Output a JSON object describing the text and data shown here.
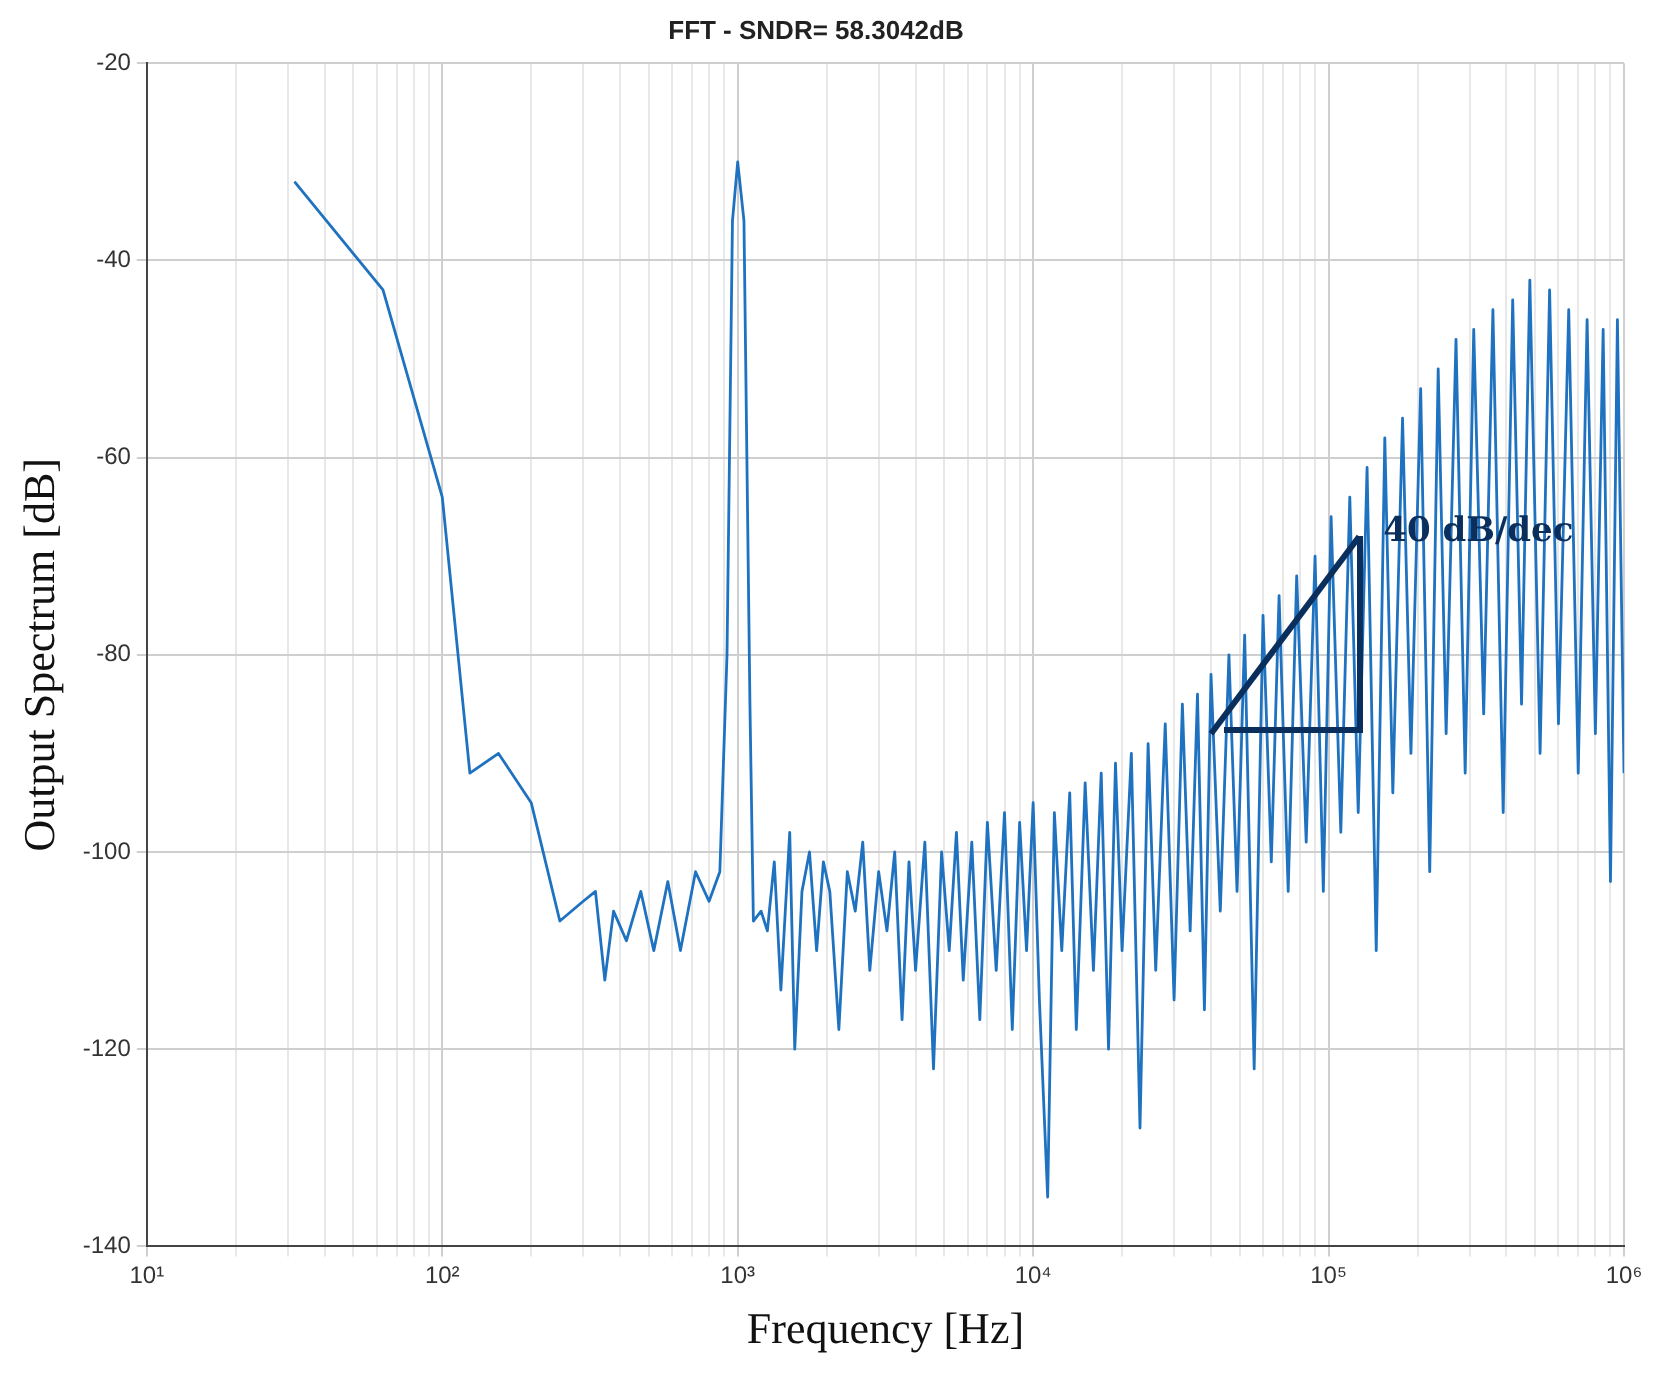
{
  "chart_data": {
    "type": "line",
    "title": "FFT - SNDR= 58.3042dB",
    "xlabel": "Frequency [Hz]",
    "ylabel": "Output Spectrum [dB]",
    "log": "x",
    "grid": true,
    "marker": "none",
    "line_style": "solid",
    "legend": false,
    "annotations": [
      {
        "text": "40 dB/dec",
        "x": 127000,
        "y": -68
      }
    ],
    "xlim": [
      10,
      1000000
    ],
    "ylim": [
      -140,
      -20
    ],
    "xticks": [
      {
        "value": 10,
        "label": "10¹"
      },
      {
        "value": 20,
        "label": null
      },
      {
        "value": 30,
        "label": null
      },
      {
        "value": 40,
        "label": null
      },
      {
        "value": 50,
        "label": null
      },
      {
        "value": 60,
        "label": null
      },
      {
        "value": 70,
        "label": null
      },
      {
        "value": 80,
        "label": null
      },
      {
        "value": 90,
        "label": null
      },
      {
        "value": 100,
        "label": "10²"
      },
      {
        "value": 200,
        "label": null
      },
      {
        "value": 300,
        "label": null
      },
      {
        "value": 400,
        "label": null
      },
      {
        "value": 500,
        "label": null
      },
      {
        "value": 600,
        "label": null
      },
      {
        "value": 700,
        "label": null
      },
      {
        "value": 800,
        "label": null
      },
      {
        "value": 900,
        "label": null
      },
      {
        "value": 1000,
        "label": "10³"
      },
      {
        "value": 2000,
        "label": null
      },
      {
        "value": 3000,
        "label": null
      },
      {
        "value": 4000,
        "label": null
      },
      {
        "value": 5000,
        "label": null
      },
      {
        "value": 6000,
        "label": null
      },
      {
        "value": 7000,
        "label": null
      },
      {
        "value": 8000,
        "label": null
      },
      {
        "value": 9000,
        "label": null
      },
      {
        "value": 10000,
        "label": "10⁴"
      },
      {
        "value": 20000,
        "label": null
      },
      {
        "value": 30000,
        "label": null
      },
      {
        "value": 40000,
        "label": null
      },
      {
        "value": 50000,
        "label": null
      },
      {
        "value": 60000,
        "label": null
      },
      {
        "value": 70000,
        "label": null
      },
      {
        "value": 80000,
        "label": null
      },
      {
        "value": 90000,
        "label": null
      },
      {
        "value": 100000,
        "label": "10⁵"
      },
      {
        "value": 200000,
        "label": null
      },
      {
        "value": 300000,
        "label": null
      },
      {
        "value": 400000,
        "label": null
      },
      {
        "value": 500000,
        "label": null
      },
      {
        "value": 600000,
        "label": null
      },
      {
        "value": 700000,
        "label": null
      },
      {
        "value": 800000,
        "label": null
      },
      {
        "value": 900000,
        "label": null
      },
      {
        "value": 1000000,
        "label": "10⁶"
      }
    ],
    "yticks": [
      -140,
      -120,
      -100,
      -80,
      -60,
      -40,
      -20
    ],
    "series": [
      {
        "type": "line",
        "color": "#0b2f5c",
        "x": [
          40000,
          127000
        ],
        "values": [
          -88,
          -68
        ]
      },
      {
        "color": "#1f72c0",
        "x": [
          31.6,
          63,
          100,
          124,
          155,
          200,
          250,
          300,
          330,
          355,
          380,
          420,
          470,
          520,
          580,
          640,
          720,
          800,
          870,
          920,
          960,
          1000,
          1050,
          1100,
          1130,
          1200,
          1260,
          1330,
          1400,
          1500,
          1560,
          1650,
          1750,
          1850,
          1950,
          2050,
          2200,
          2350,
          2500,
          2650,
          2800,
          3000,
          3200,
          3400,
          3600,
          3800,
          4000,
          4300,
          4600,
          4900,
          5200,
          5500,
          5800,
          6200,
          6600,
          7000,
          7500,
          8000,
          8500,
          9000,
          9500,
          10000,
          10500,
          11200,
          11800,
          12500,
          13300,
          14000,
          15000,
          16000,
          17000,
          18000,
          19000,
          20000,
          21500,
          23000,
          24500,
          26000,
          28000,
          30000,
          32000,
          34000,
          36000,
          38000,
          40000,
          43000,
          46000,
          49000,
          52000,
          56000,
          60000,
          64000,
          68000,
          73000,
          78000,
          84000,
          90000,
          96000,
          102000,
          110000,
          118000,
          126000,
          135000,
          145000,
          155000,
          165000,
          178000,
          190000,
          205000,
          220000,
          235000,
          250000,
          270000,
          290000,
          310000,
          335000,
          360000,
          390000,
          420000,
          450000,
          480000,
          520000,
          560000,
          600000,
          650000,
          700000,
          750000,
          800000,
          850000,
          900000,
          950000,
          1000000
        ],
        "values": [
          -32,
          -43,
          -64,
          -92,
          -90,
          -95,
          -107,
          -105,
          -104,
          -113,
          -106,
          -109,
          -104,
          -110,
          -103,
          -110,
          -102,
          -105,
          -102,
          -80,
          -36,
          -30,
          -36,
          -85,
          -107,
          -106,
          -108,
          -101,
          -114,
          -98,
          -120,
          -104,
          -100,
          -110,
          -101,
          -104,
          -118,
          -102,
          -106,
          -99,
          -112,
          -102,
          -108,
          -100,
          -117,
          -101,
          -112,
          -99,
          -122,
          -100,
          -110,
          -98,
          -113,
          -99,
          -117,
          -97,
          -112,
          -96,
          -118,
          -97,
          -110,
          -95,
          -115,
          -135,
          -96,
          -110,
          -94,
          -118,
          -93,
          -112,
          -92,
          -120,
          -91,
          -110,
          -90,
          -128,
          -89,
          -112,
          -87,
          -115,
          -85,
          -108,
          -84,
          -116,
          -82,
          -106,
          -80,
          -104,
          -78,
          -122,
          -76,
          -101,
          -74,
          -104,
          -72,
          -99,
          -70,
          -104,
          -66,
          -98,
          -64,
          -96,
          -61,
          -110,
          -58,
          -94,
          -56,
          -90,
          -53,
          -102,
          -51,
          -88,
          -48,
          -92,
          -47,
          -86,
          -45,
          -96,
          -44,
          -85,
          -42,
          -90,
          -43,
          -87,
          -45,
          -92,
          -46,
          -88,
          -47,
          -103,
          -46,
          -92
        ]
      }
    ]
  }
}
